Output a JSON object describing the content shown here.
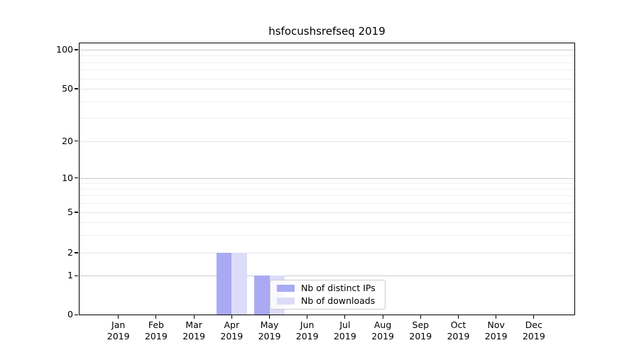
{
  "title": "hsfocushsrefseq 2019",
  "colors": {
    "distinct_ips_bar": "#a9aaf3",
    "downloads_bar": "#dcdcf8",
    "grid_major": "#c9c9c9",
    "grid_mid": "#e4e4e4",
    "grid_minor": "#f0f0f0",
    "axis": "#000000",
    "legend_border": "#cccccc"
  },
  "chart_data": {
    "type": "bar",
    "title": "hsfocushsrefseq 2019",
    "categories": [
      "Jan",
      "Feb",
      "Mar",
      "Apr",
      "May",
      "Jun",
      "Jul",
      "Aug",
      "Sep",
      "Oct",
      "Nov",
      "Dec"
    ],
    "year": "2019",
    "series": [
      {
        "name": "Nb of distinct IPs",
        "color": "#a9aaf3",
        "values": [
          0,
          0,
          0,
          2,
          1,
          0,
          0,
          0,
          0,
          0,
          0,
          0
        ]
      },
      {
        "name": "Nb of downloads",
        "color": "#dcdcf8",
        "values": [
          0,
          0,
          0,
          2,
          1,
          0,
          0,
          0,
          0,
          0,
          0,
          0
        ]
      }
    ],
    "xlabel": "",
    "ylabel": "",
    "yscale": "log",
    "y_ticks": [
      0,
      1,
      2,
      5,
      10,
      20,
      50,
      100
    ],
    "y_minor_ticks": [
      3,
      4,
      6,
      7,
      8,
      9,
      30,
      40,
      60,
      70,
      80,
      90
    ],
    "ylim": [
      0,
      115
    ],
    "grid": true,
    "legend_position": "inside lower-center"
  }
}
